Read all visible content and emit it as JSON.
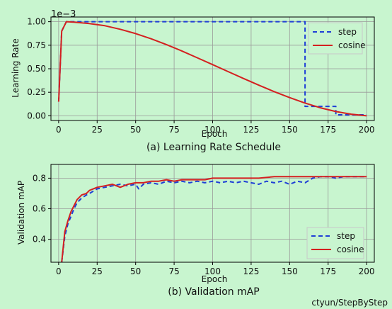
{
  "colors": {
    "background": "#c8f5cf",
    "step": "#1f3fd6",
    "cosine": "#d42020",
    "grid": "#9a9a9a",
    "axis": "#000000"
  },
  "chart_data": [
    {
      "type": "line",
      "title": "(a) Learning Rate Schedule",
      "xlabel": "Epoch",
      "ylabel": "Learning Rate",
      "scale_note": "1e−3",
      "xlim": [
        -5,
        205
      ],
      "ylim": [
        -0.05,
        1.05
      ],
      "xticks": [
        0,
        25,
        50,
        75,
        100,
        125,
        150,
        175,
        200
      ],
      "yticks": [
        0.0,
        0.25,
        0.5,
        0.75,
        1.0
      ],
      "ytick_labels": [
        "0.00",
        "0.25",
        "0.50",
        "0.75",
        "1.00"
      ],
      "grid": true,
      "legend_position": "top-right",
      "series": [
        {
          "name": "step",
          "style": "dashed",
          "color": "#1f3fd6",
          "x": [
            0,
            2,
            5,
            160,
            160,
            180,
            180,
            200
          ],
          "y": [
            0.15,
            0.9,
            1.0,
            1.0,
            0.1,
            0.1,
            0.01,
            0.01
          ]
        },
        {
          "name": "cosine",
          "style": "solid",
          "color": "#d42020",
          "x": [
            0,
            2,
            5,
            10,
            20,
            30,
            40,
            50,
            60,
            70,
            80,
            90,
            100,
            110,
            120,
            130,
            140,
            150,
            160,
            170,
            180,
            190,
            200
          ],
          "y": [
            0.15,
            0.9,
            1.0,
            0.996,
            0.98,
            0.957,
            0.92,
            0.874,
            0.819,
            0.757,
            0.689,
            0.617,
            0.544,
            0.47,
            0.397,
            0.325,
            0.257,
            0.193,
            0.135,
            0.085,
            0.045,
            0.017,
            0.0
          ]
        }
      ]
    },
    {
      "type": "line",
      "title": "(b) Validation mAP",
      "xlabel": "Epoch",
      "ylabel": "Validation mAP",
      "xlim": [
        -5,
        205
      ],
      "ylim": [
        0.25,
        0.89
      ],
      "xticks": [
        0,
        25,
        50,
        75,
        100,
        125,
        150,
        175,
        200
      ],
      "yticks": [
        0.4,
        0.6,
        0.8
      ],
      "ytick_labels": [
        "0.4",
        "0.6",
        "0.8"
      ],
      "grid": true,
      "legend_position": "bottom-right",
      "series": [
        {
          "name": "step",
          "style": "dashed",
          "color": "#1f3fd6",
          "x": [
            2,
            4,
            6,
            8,
            10,
            12,
            15,
            18,
            20,
            25,
            30,
            35,
            40,
            45,
            50,
            52,
            55,
            60,
            65,
            70,
            75,
            80,
            85,
            90,
            95,
            100,
            105,
            110,
            115,
            120,
            125,
            130,
            135,
            140,
            145,
            150,
            155,
            160,
            165,
            170,
            175,
            180,
            185,
            190,
            195,
            200
          ],
          "y": [
            0.25,
            0.42,
            0.5,
            0.55,
            0.6,
            0.64,
            0.67,
            0.69,
            0.7,
            0.73,
            0.74,
            0.75,
            0.76,
            0.75,
            0.76,
            0.73,
            0.76,
            0.77,
            0.76,
            0.78,
            0.77,
            0.78,
            0.77,
            0.78,
            0.77,
            0.78,
            0.77,
            0.78,
            0.77,
            0.78,
            0.77,
            0.76,
            0.78,
            0.77,
            0.78,
            0.76,
            0.78,
            0.77,
            0.8,
            0.81,
            0.81,
            0.8,
            0.81,
            0.81,
            0.81,
            0.81
          ]
        },
        {
          "name": "cosine",
          "style": "solid",
          "color": "#d42020",
          "x": [
            2,
            4,
            6,
            8,
            10,
            12,
            15,
            18,
            20,
            25,
            30,
            35,
            40,
            45,
            50,
            55,
            60,
            65,
            70,
            75,
            80,
            85,
            90,
            95,
            100,
            110,
            120,
            130,
            140,
            150,
            160,
            170,
            180,
            190,
            200
          ],
          "y": [
            0.25,
            0.45,
            0.52,
            0.58,
            0.62,
            0.66,
            0.69,
            0.7,
            0.72,
            0.74,
            0.75,
            0.76,
            0.74,
            0.76,
            0.77,
            0.77,
            0.78,
            0.78,
            0.79,
            0.78,
            0.79,
            0.79,
            0.79,
            0.79,
            0.8,
            0.8,
            0.8,
            0.8,
            0.81,
            0.81,
            0.81,
            0.81,
            0.81,
            0.81,
            0.81
          ]
        }
      ]
    }
  ],
  "watermark": "ctyun/StepByStep"
}
